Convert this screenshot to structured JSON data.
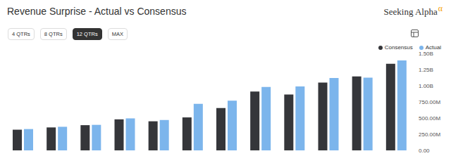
{
  "page": {
    "brand": "Seeking Alpha",
    "brand_mark": "α",
    "buttons": [
      "4 QTRs",
      "8 QTRs",
      "12 QTRs",
      "MAX"
    ],
    "selected_button": "12 QTRs"
  },
  "chart_data": {
    "type": "bar",
    "title": "Revenue Surprise - Actual vs Consensus",
    "categories": [
      null,
      null,
      null,
      null,
      null,
      null,
      null,
      null,
      null,
      null,
      null,
      null
    ],
    "series": [
      {
        "name": "Consensus",
        "color": "#35363a",
        "values": [
          320000000,
          355000000,
          390000000,
          480000000,
          450000000,
          510000000,
          655000000,
          910000000,
          865000000,
          1050000000,
          1145000000,
          1340000000
        ]
      },
      {
        "name": "Actual",
        "color": "#7cb5ec",
        "values": [
          330000000,
          365000000,
          395000000,
          495000000,
          470000000,
          720000000,
          770000000,
          980000000,
          990000000,
          1120000000,
          1125000000,
          1390000000
        ]
      }
    ],
    "ylim": [
      0,
      1500000000
    ],
    "yticks": [
      {
        "value": 0,
        "label": "0.00"
      },
      {
        "value": 250000000,
        "label": "250.00M"
      },
      {
        "value": 500000000,
        "label": "500.00M"
      },
      {
        "value": 750000000,
        "label": "750.00M"
      },
      {
        "value": 1000000000,
        "label": "1.00B"
      },
      {
        "value": 1250000000,
        "label": "1.25B"
      },
      {
        "value": 1500000000,
        "label": "1.50B"
      }
    ],
    "grid": false,
    "legend": "top-right"
  }
}
